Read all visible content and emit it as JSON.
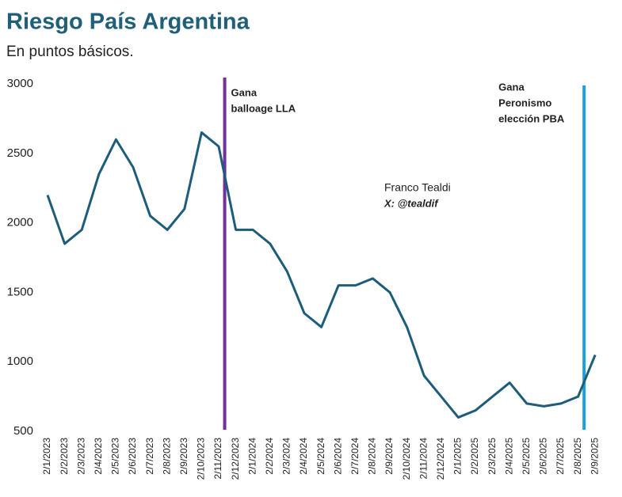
{
  "chart_data": {
    "type": "line",
    "title": "Riesgo País Argentina",
    "subtitle": "En puntos básicos.",
    "categories": [
      "2/1/2023",
      "2/2/2023",
      "2/3/2023",
      "2/4/2023",
      "2/5/2023",
      "2/6/2023",
      "2/7/2023",
      "2/8/2023",
      "2/9/2023",
      "2/10/2023",
      "2/11/2023",
      "2/12/2023",
      "2/1/2024",
      "2/2/2024",
      "2/3/2024",
      "2/4/2024",
      "2/5/2024",
      "2/6/2024",
      "2/7/2024",
      "2/8/2024",
      "2/9/2024",
      "2/10/2024",
      "2/11/2024",
      "2/12/2024",
      "2/1/2025",
      "2/2/2025",
      "2/3/2025",
      "2/4/2025",
      "2/5/2025",
      "2/6/2025",
      "2/7/2025",
      "2/8/2025",
      "2/9/2025"
    ],
    "series": [
      {
        "name": "Riesgo País",
        "color": "#1d5c7a",
        "values": [
          2200,
          1850,
          1950,
          2350,
          2600,
          2400,
          2050,
          1950,
          2100,
          2650,
          2550,
          1950,
          1950,
          1850,
          1650,
          1350,
          1250,
          1550,
          1550,
          1600,
          1500,
          1250,
          900,
          750,
          600,
          650,
          750,
          850,
          700,
          680,
          700,
          750,
          1050
        ]
      }
    ],
    "ylim": [
      500,
      3000
    ],
    "yticks": [
      500,
      1000,
      1500,
      2000,
      2500,
      3000
    ],
    "grid": false,
    "annotations": [
      {
        "category": "2/11/2023",
        "color": "#7030a0",
        "lines": [
          "Gana",
          "balloage LLA"
        ]
      },
      {
        "category": "2/8/2025",
        "color": "#1ba1d9",
        "lines": [
          "Gana",
          "Peronismo",
          "elección PBA"
        ]
      }
    ],
    "watermark": [
      "Franco Tealdi",
      "X: @tealdif"
    ]
  }
}
